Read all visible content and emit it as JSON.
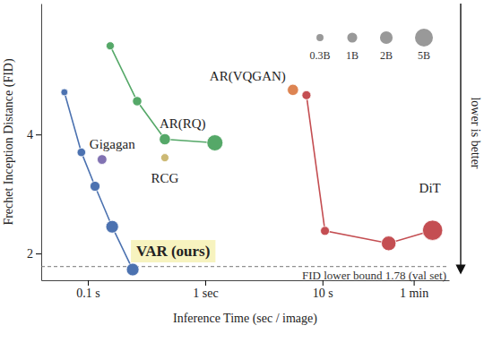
{
  "chart_data": {
    "type": "scatter",
    "x_label": "Inference Time (sec / image)",
    "y_label": "Frechet Inception Distance (FID)",
    "log": "x",
    "xlim": [
      0.04,
      120
    ],
    "ylim": [
      1.55,
      6.2
    ],
    "xticks": [
      {
        "value": 0.1,
        "label": "0.1 s"
      },
      {
        "value": 1,
        "label": "1 sec"
      },
      {
        "value": 10,
        "label": "10 s"
      },
      {
        "value": 60,
        "label": "1 min"
      }
    ],
    "yticks": [
      2,
      4
    ],
    "series": [
      {
        "name": "VAR (ours)",
        "color": "#4c72b0",
        "marker": "circle",
        "line_style": "solid",
        "x": [
          0.063,
          0.088,
          0.115,
          0.161,
          0.241
        ],
        "values": [
          4.71,
          3.7,
          3.13,
          2.45,
          1.73
        ],
        "sizes": [
          0.3,
          0.6,
          1.0,
          2.0,
          2.0
        ]
      },
      {
        "name": "AR(RQ)",
        "color": "#55a868",
        "marker": "circle",
        "line_style": "solid",
        "x": [
          0.155,
          0.263,
          0.453,
          1.21
        ],
        "values": [
          5.49,
          4.56,
          3.92,
          3.86
        ],
        "sizes": [
          0.5,
          0.8,
          1.4,
          3.8
        ]
      },
      {
        "name": "Gigagan",
        "color": "#8172b2",
        "marker": "circle",
        "line_style": "none",
        "x": [
          0.132
        ],
        "values": [
          3.58
        ],
        "sizes": [
          0.9
        ]
      },
      {
        "name": "RCG",
        "color": "#ccb974",
        "marker": "circle",
        "line_style": "none",
        "x": [
          0.453
        ],
        "values": [
          3.61
        ],
        "sizes": [
          0.5
        ]
      },
      {
        "name": "AR(VQGAN)",
        "color": "#dd8452",
        "marker": "circle",
        "line_style": "none",
        "x": [
          5.6
        ],
        "values": [
          4.75
        ],
        "sizes": [
          1.4
        ]
      },
      {
        "name": "DiT",
        "color": "#c44e52",
        "marker": "circle",
        "line_style": "solid",
        "x": [
          7.3,
          10.5,
          36.7,
          86.9
        ],
        "values": [
          4.66,
          2.38,
          2.17,
          2.39
        ],
        "sizes": [
          0.7,
          0.7,
          3.0,
          6.7
        ]
      }
    ],
    "size_ticks": [
      {
        "value": 0.3,
        "label": "0.3B"
      },
      {
        "value": 1,
        "label": "1B"
      },
      {
        "value": 2,
        "label": "2B"
      },
      {
        "value": 5,
        "label": "5B"
      }
    ],
    "reference_line": {
      "value": 1.78,
      "label": "FID lower bound 1.78 (val set)"
    },
    "annotations": [
      "lower is better"
    ]
  }
}
